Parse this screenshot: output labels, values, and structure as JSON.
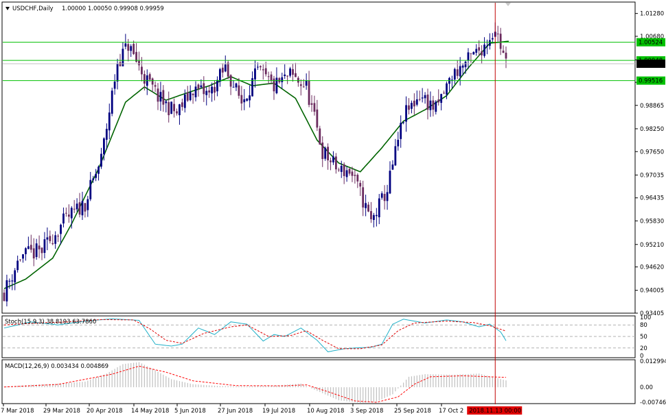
{
  "colors": {
    "background": "#ffffff",
    "frame": "#000000",
    "bull_candle": "#000080",
    "bear_candle": "#6a2a5e",
    "ma": "#006400",
    "hline": "#00c000",
    "vline": "#c00000",
    "stoch_main": "#20b0c8",
    "stoch_signal": "#e00000",
    "macd_hist": "#c0c0c0",
    "macd_signal": "#ff0000",
    "current_tag_bg": "#000000",
    "level_tag_bg": "#00c000",
    "date_tag_bg": "#e00000"
  },
  "main_panel": {
    "title_icon": "dropdown-triangle-icon",
    "symbol": "USDCHF,Daily",
    "ohlc": "1.00000 1.00050 0.99908 0.99959",
    "yaxis_ticks": [
      "1.01280",
      "1.00680",
      "1.00060",
      "0.99470",
      "0.98865",
      "0.98250",
      "0.97650",
      "0.97035",
      "0.96435",
      "0.95830",
      "0.95210",
      "0.94620",
      "0.94005",
      "0.93405"
    ],
    "hlines": [
      {
        "value": 1.00524,
        "label": "1.00524"
      },
      {
        "value": 1.00048,
        "label": "1.00048"
      },
      {
        "value": 0.99516,
        "label": "0.99516"
      }
    ],
    "current_price": {
      "value": 0.99959,
      "label": "0.99959"
    }
  },
  "stoch_panel": {
    "label": "Stoch(15,9,3) 38.8193 63.7860",
    "yaxis_ticks": [
      "100",
      "80",
      "50",
      "20",
      "0"
    ],
    "levels": [
      80,
      50,
      20
    ]
  },
  "macd_panel": {
    "label": "MACD(12,26,9) 0.003434 0.004869",
    "yaxis_ticks": [
      "0.012994",
      "0.00",
      "-0.007469"
    ]
  },
  "x_axis": {
    "ticks": [
      "7 Mar 2018",
      "29 Mar 2018",
      "20 Apr 2018",
      "14 May 2018",
      "5 Jun 2018",
      "27 Jun 2018",
      "19 Jul 2018",
      "10 Aug 2018",
      "3 Sep 2018",
      "25 Sep 2018",
      "17 Oct 2"
    ],
    "cursor_label": "2018.11.13 00:00"
  },
  "chart_data": {
    "type": "candlestick",
    "symbol": "USDCHF",
    "timeframe": "Daily",
    "ylim": [
      0.93405,
      1.0158
    ],
    "ohlc_ordering": "open-high-low-close",
    "ma_anchor_index": [
      0,
      8,
      18,
      25,
      35,
      45,
      52,
      60,
      68,
      76,
      84,
      92,
      100,
      108,
      116,
      124,
      132,
      140,
      148,
      156,
      164,
      172,
      180,
      187
    ],
    "ma_anchor_values": [
      0.9405,
      0.943,
      0.9485,
      0.9575,
      0.972,
      0.9895,
      0.9935,
      0.99,
      0.992,
      0.9938,
      0.9962,
      0.9938,
      0.9945,
      0.9905,
      0.9795,
      0.9735,
      0.9712,
      0.9775,
      0.9845,
      0.9875,
      0.9912,
      0.9985,
      1.005,
      1.0055
    ],
    "close_anchor_index": [
      0,
      6,
      14,
      22,
      30,
      36,
      42,
      46,
      52,
      58,
      64,
      70,
      76,
      82,
      88,
      94,
      100,
      106,
      112,
      118,
      124,
      128,
      132,
      136,
      142,
      148,
      154,
      160,
      166,
      172,
      178,
      182,
      186
    ],
    "close_anchor_values": [
      0.9395,
      0.949,
      0.9505,
      0.958,
      0.963,
      0.9745,
      1.0,
      1.0045,
      0.996,
      0.99,
      0.9865,
      0.993,
      0.9915,
      0.9985,
      0.9895,
      0.9975,
      0.9935,
      0.9965,
      0.9935,
      0.9765,
      0.9715,
      0.9715,
      0.9655,
      0.958,
      0.9665,
      0.9855,
      0.9915,
      0.9875,
      0.9965,
      1.0005,
      1.0045,
      1.009,
      0.9996
    ],
    "stoch_main_anchors": [
      {
        "i": 0,
        "v": 72
      },
      {
        "i": 10,
        "v": 88
      },
      {
        "i": 20,
        "v": 80
      },
      {
        "i": 30,
        "v": 90
      },
      {
        "i": 40,
        "v": 96
      },
      {
        "i": 50,
        "v": 92
      },
      {
        "i": 56,
        "v": 30
      },
      {
        "i": 62,
        "v": 25
      },
      {
        "i": 66,
        "v": 30
      },
      {
        "i": 72,
        "v": 72
      },
      {
        "i": 78,
        "v": 55
      },
      {
        "i": 84,
        "v": 88
      },
      {
        "i": 90,
        "v": 82
      },
      {
        "i": 96,
        "v": 38
      },
      {
        "i": 100,
        "v": 55
      },
      {
        "i": 104,
        "v": 50
      },
      {
        "i": 110,
        "v": 72
      },
      {
        "i": 116,
        "v": 40
      },
      {
        "i": 120,
        "v": 10
      },
      {
        "i": 126,
        "v": 18
      },
      {
        "i": 130,
        "v": 20
      },
      {
        "i": 136,
        "v": 22
      },
      {
        "i": 140,
        "v": 30
      },
      {
        "i": 144,
        "v": 82
      },
      {
        "i": 148,
        "v": 95
      },
      {
        "i": 156,
        "v": 85
      },
      {
        "i": 164,
        "v": 93
      },
      {
        "i": 170,
        "v": 88
      },
      {
        "i": 176,
        "v": 75
      },
      {
        "i": 180,
        "v": 82
      },
      {
        "i": 184,
        "v": 62
      },
      {
        "i": 186,
        "v": 39
      }
    ],
    "stoch_signal_anchors": [
      {
        "i": 0,
        "v": 80
      },
      {
        "i": 12,
        "v": 85
      },
      {
        "i": 24,
        "v": 88
      },
      {
        "i": 36,
        "v": 94
      },
      {
        "i": 48,
        "v": 93
      },
      {
        "i": 54,
        "v": 70
      },
      {
        "i": 60,
        "v": 40
      },
      {
        "i": 66,
        "v": 32
      },
      {
        "i": 74,
        "v": 58
      },
      {
        "i": 84,
        "v": 75
      },
      {
        "i": 90,
        "v": 80
      },
      {
        "i": 98,
        "v": 50
      },
      {
        "i": 106,
        "v": 52
      },
      {
        "i": 112,
        "v": 65
      },
      {
        "i": 118,
        "v": 40
      },
      {
        "i": 124,
        "v": 18
      },
      {
        "i": 132,
        "v": 18
      },
      {
        "i": 140,
        "v": 28
      },
      {
        "i": 146,
        "v": 65
      },
      {
        "i": 152,
        "v": 85
      },
      {
        "i": 164,
        "v": 90
      },
      {
        "i": 174,
        "v": 86
      },
      {
        "i": 180,
        "v": 78
      },
      {
        "i": 186,
        "v": 64
      }
    ],
    "macd_hist_anchors": [
      {
        "i": 0,
        "v": 0.0003
      },
      {
        "i": 10,
        "v": 0.0012
      },
      {
        "i": 20,
        "v": 0.0018
      },
      {
        "i": 30,
        "v": 0.0028
      },
      {
        "i": 38,
        "v": 0.0068
      },
      {
        "i": 44,
        "v": 0.0115
      },
      {
        "i": 50,
        "v": 0.0125
      },
      {
        "i": 56,
        "v": 0.0085
      },
      {
        "i": 62,
        "v": 0.004
      },
      {
        "i": 70,
        "v": 0.0015
      },
      {
        "i": 80,
        "v": 0.0006
      },
      {
        "i": 90,
        "v": 0.0004
      },
      {
        "i": 100,
        "v": 0.0008
      },
      {
        "i": 110,
        "v": 0.0018
      },
      {
        "i": 116,
        "v": -0.0018
      },
      {
        "i": 124,
        "v": -0.0065
      },
      {
        "i": 132,
        "v": -0.0078
      },
      {
        "i": 138,
        "v": -0.0072
      },
      {
        "i": 144,
        "v": -0.0035
      },
      {
        "i": 150,
        "v": 0.0052
      },
      {
        "i": 156,
        "v": 0.0065
      },
      {
        "i": 166,
        "v": 0.0062
      },
      {
        "i": 176,
        "v": 0.0068
      },
      {
        "i": 186,
        "v": 0.0034
      }
    ],
    "macd_signal_anchors": [
      {
        "i": 0,
        "v": 0.0001
      },
      {
        "i": 20,
        "v": 0.0014
      },
      {
        "i": 40,
        "v": 0.0065
      },
      {
        "i": 50,
        "v": 0.0105
      },
      {
        "i": 60,
        "v": 0.0075
      },
      {
        "i": 70,
        "v": 0.0032
      },
      {
        "i": 86,
        "v": 0.0008
      },
      {
        "i": 104,
        "v": 0.0007
      },
      {
        "i": 112,
        "v": 0.0012
      },
      {
        "i": 120,
        "v": -0.0022
      },
      {
        "i": 130,
        "v": -0.0068
      },
      {
        "i": 138,
        "v": -0.0075
      },
      {
        "i": 146,
        "v": -0.0048
      },
      {
        "i": 152,
        "v": 0.0015
      },
      {
        "i": 158,
        "v": 0.0052
      },
      {
        "i": 170,
        "v": 0.0057
      },
      {
        "i": 186,
        "v": 0.0049
      }
    ],
    "stoch_ylim": [
      0,
      100
    ],
    "macd_ylim": [
      -0.007469,
      0.012994
    ],
    "n_bars": 187,
    "cursor_bar_index": 182
  }
}
